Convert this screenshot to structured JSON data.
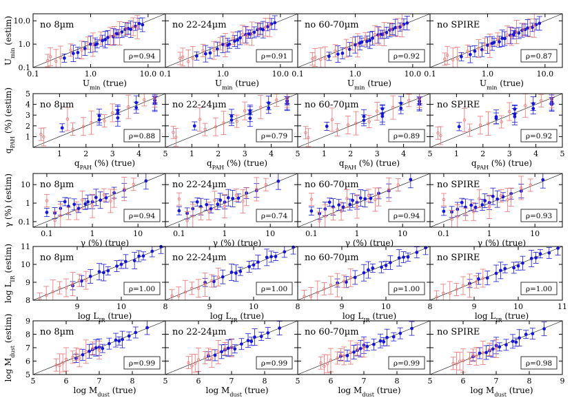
{
  "colors": {
    "blue": "#1515d6",
    "red": "#ee6f6f",
    "diagonal": "#000000"
  },
  "chart_data": {
    "type": "scatter",
    "rows": [
      {
        "key": "umin",
        "scale": "log",
        "xlim": [
          0.1,
          20
        ],
        "ylim": [
          0.1,
          20
        ],
        "xticks": [
          {
            "v": 0.1,
            "label": "0.1"
          },
          {
            "v": 1,
            "label": "1.0"
          },
          {
            "v": 10,
            "label": "10.0"
          }
        ],
        "yticks": [
          {
            "v": 0.1,
            "label": "0.1"
          },
          {
            "v": 1,
            "label": "1.0"
          },
          {
            "v": 10,
            "label": "10.0"
          }
        ],
        "ylabel": {
          "main": "U",
          "sub": "min",
          "tail": " (estim)"
        },
        "xlabel": {
          "main": "U",
          "sub": "min",
          "tail": " (true)"
        },
        "rho": [
          "ρ=0.94",
          "ρ=0.91",
          "ρ=0.92",
          "ρ=0.87"
        ],
        "series": [
          {
            "name": "blue",
            "color": "blue",
            "points": [
              [
                0.35,
                0.28
              ],
              [
                0.6,
                0.45
              ],
              [
                0.8,
                0.62
              ],
              [
                1.0,
                0.9
              ],
              [
                1.3,
                1.1
              ],
              [
                1.6,
                1.4
              ],
              [
                2.0,
                1.8
              ],
              [
                2.5,
                2.3
              ],
              [
                3.0,
                2.9
              ],
              [
                3.5,
                3.2
              ],
              [
                4.0,
                3.9
              ],
              [
                5.0,
                4.6
              ],
              [
                6.0,
                5.8
              ],
              [
                7.0,
                7.1
              ],
              [
                8.0,
                7.5
              ],
              [
                1.8,
                1.6
              ],
              [
                2.8,
                2.7
              ],
              [
                4.5,
                4.2
              ],
              [
                1.2,
                1.0
              ],
              [
                0.5,
                0.4
              ]
            ]
          },
          {
            "name": "red",
            "color": "red",
            "points": [
              [
                0.18,
                0.22
              ],
              [
                0.2,
                0.3
              ],
              [
                0.3,
                0.25
              ],
              [
                0.45,
                0.5
              ],
              [
                0.7,
                0.6
              ],
              [
                1.1,
                0.95
              ],
              [
                1.5,
                1.7
              ],
              [
                2.2,
                2.4
              ],
              [
                3.2,
                3.0
              ],
              [
                4.2,
                4.5
              ],
              [
                5.5,
                5.0
              ],
              [
                0.25,
                0.2
              ],
              [
                0.9,
                1.1
              ],
              [
                2.6,
                2.2
              ],
              [
                6.5,
                6.0
              ]
            ]
          }
        ]
      },
      {
        "key": "qpah",
        "scale": "linear",
        "xlim": [
          0,
          5
        ],
        "ylim": [
          0,
          5
        ],
        "xticks": [
          {
            "v": 1,
            "label": "1"
          },
          {
            "v": 2,
            "label": "2"
          },
          {
            "v": 3,
            "label": "3"
          },
          {
            "v": 4,
            "label": "4"
          },
          {
            "v": 5,
            "label": "5"
          }
        ],
        "yticks": [
          {
            "v": 1,
            "label": "1"
          },
          {
            "v": 2,
            "label": "2"
          },
          {
            "v": 3,
            "label": "3"
          },
          {
            "v": 4,
            "label": "4"
          },
          {
            "v": 5,
            "label": "5"
          }
        ],
        "ylabel": {
          "main": "q",
          "sub": "PAH",
          "tail": " (%) (estim)"
        },
        "xlabel": {
          "main": "q",
          "sub": "PAH",
          "tail": " (%) (true)"
        },
        "rho": [
          "ρ=0.88",
          "ρ=0.79",
          "ρ=0.89",
          "ρ=0.92"
        ],
        "series": [
          {
            "name": "blue",
            "color": "blue",
            "points": [
              [
                1.1,
                1.9
              ],
              [
                2.5,
                2.6
              ],
              [
                2.5,
                2.9
              ],
              [
                3.2,
                3.1
              ],
              [
                3.2,
                3.5
              ],
              [
                3.9,
                3.7
              ],
              [
                3.9,
                4.1
              ],
              [
                4.6,
                4.2
              ],
              [
                4.6,
                4.4
              ],
              [
                4.6,
                4.6
              ],
              [
                4.6,
                4.0
              ],
              [
                3.2,
                2.8
              ]
            ]
          },
          {
            "name": "red",
            "color": "red",
            "points": [
              [
                0.3,
                1.3
              ],
              [
                0.4,
                1.0
              ],
              [
                1.3,
                2.6
              ],
              [
                1.5,
                1.6
              ],
              [
                1.9,
                2.0
              ],
              [
                2.2,
                2.3
              ],
              [
                2.7,
                2.4
              ],
              [
                3.0,
                3.3
              ],
              [
                3.6,
                3.8
              ],
              [
                4.2,
                4.4
              ],
              [
                4.6,
                4.5
              ]
            ]
          }
        ]
      },
      {
        "key": "gamma",
        "scale": "log",
        "xlim": [
          0.05,
          40
        ],
        "ylim": [
          0.05,
          40
        ],
        "xticks": [
          {
            "v": 0.1,
            "label": "0.1"
          },
          {
            "v": 1,
            "label": "1"
          },
          {
            "v": 10,
            "label": "10"
          }
        ],
        "yticks": [
          {
            "v": 0.1,
            "label": "0.1"
          },
          {
            "v": 1,
            "label": "1"
          },
          {
            "v": 10,
            "label": "10"
          }
        ],
        "ylabel": {
          "main": "γ",
          "sub": "",
          "tail": " (%) (estim)"
        },
        "xlabel": {
          "main": "γ",
          "sub": "",
          "tail": " (%) (true)"
        },
        "rho": [
          "ρ=0.94",
          "ρ=0.74",
          "ρ=0.94",
          "ρ=0.93"
        ],
        "series": [
          {
            "name": "blue",
            "color": "blue",
            "points": [
              [
                0.1,
                0.35
              ],
              [
                0.15,
                0.3
              ],
              [
                0.2,
                0.5
              ],
              [
                0.3,
                0.6
              ],
              [
                0.5,
                0.55
              ],
              [
                0.7,
                0.9
              ],
              [
                1.0,
                1.1
              ],
              [
                1.5,
                1.6
              ],
              [
                2.0,
                2.0
              ],
              [
                3.0,
                3.5
              ],
              [
                5.0,
                4.5
              ],
              [
                15,
                17
              ],
              [
                0.25,
                1.2
              ],
              [
                0.4,
                0.8
              ],
              [
                0.8,
                1.3
              ],
              [
                1.2,
                2.1
              ]
            ]
          },
          {
            "name": "red",
            "color": "red",
            "points": [
              [
                0.1,
                1.5
              ],
              [
                0.15,
                0.12
              ],
              [
                0.2,
                0.2
              ],
              [
                0.3,
                0.25
              ],
              [
                0.6,
                1.6
              ],
              [
                1.0,
                0.7
              ],
              [
                1.8,
                2.6
              ],
              [
                3.0,
                2.0
              ],
              [
                5.0,
                6.0
              ],
              [
                8.0,
                10.0
              ],
              [
                0.45,
                0.35
              ],
              [
                2.5,
                1.4
              ]
            ]
          }
        ]
      },
      {
        "key": "lir",
        "scale": "linear",
        "xlim": [
          8,
          11
        ],
        "ylim": [
          8,
          11
        ],
        "xticks": [
          {
            "v": 9,
            "label": "9"
          },
          {
            "v": 10,
            "label": "10"
          }
        ],
        "xedge": [
          {
            "v": 8,
            "label": "8",
            "cols": [
              1,
              2,
              3
            ]
          },
          {
            "v": 11,
            "label": "11",
            "cols": [
              3
            ]
          }
        ],
        "yticks": [
          {
            "v": 8,
            "label": "8"
          },
          {
            "v": 9,
            "label": "9"
          },
          {
            "v": 10,
            "label": "10"
          },
          {
            "v": 11,
            "label": "11"
          }
        ],
        "ylabel": {
          "main": "log L",
          "sub": "IR",
          "tail": " (estim)"
        },
        "xlabel": {
          "main": "log L",
          "sub": "IR",
          "tail": " (true)"
        },
        "rho": [
          "ρ=1.00",
          "ρ=1.00",
          "ρ=1.00",
          "ρ=1.00"
        ],
        "series": [
          {
            "name": "blue",
            "color": "blue",
            "points": [
              [
                8.9,
                8.9
              ],
              [
                9.1,
                9.1
              ],
              [
                9.3,
                9.3
              ],
              [
                9.5,
                9.5
              ],
              [
                9.7,
                9.7
              ],
              [
                9.9,
                9.9
              ],
              [
                10.1,
                10.1
              ],
              [
                10.3,
                10.3
              ],
              [
                10.5,
                10.5
              ],
              [
                10.7,
                10.7
              ],
              [
                10.9,
                10.9
              ],
              [
                9.6,
                9.6
              ],
              [
                10.0,
                10.0
              ],
              [
                10.4,
                10.4
              ]
            ]
          },
          {
            "name": "red",
            "color": "red",
            "points": [
              [
                8.15,
                8.15
              ],
              [
                8.3,
                8.3
              ],
              [
                8.45,
                8.45
              ],
              [
                8.6,
                8.6
              ],
              [
                8.75,
                8.75
              ],
              [
                8.9,
                8.9
              ],
              [
                9.05,
                9.05
              ],
              [
                9.2,
                9.2
              ]
            ]
          }
        ]
      },
      {
        "key": "mdust",
        "scale": "linear",
        "xlim": [
          5,
          9
        ],
        "ylim": [
          5,
          9
        ],
        "xticks": [
          {
            "v": 6,
            "label": "6"
          },
          {
            "v": 7,
            "label": "7"
          },
          {
            "v": 8,
            "label": "8"
          }
        ],
        "xedge": [
          {
            "v": 5,
            "label": "5",
            "cols": [
              0,
              1,
              2,
              3
            ]
          },
          {
            "v": 9,
            "label": "9",
            "cols": [
              3
            ]
          }
        ],
        "yticks": [
          {
            "v": 5,
            "label": "5"
          },
          {
            "v": 6,
            "label": "6"
          },
          {
            "v": 7,
            "label": "7"
          },
          {
            "v": 8,
            "label": "8"
          },
          {
            "v": 9,
            "label": "9"
          }
        ],
        "ylabel": {
          "main": "log M",
          "sub": "dust",
          "tail": " (estim)"
        },
        "xlabel": {
          "main": "log M",
          "sub": "dust",
          "tail": " (true)"
        },
        "rho": [
          "ρ=0.99",
          "ρ=0.99",
          "ρ=0.99",
          "ρ=0.98"
        ],
        "series": [
          {
            "name": "blue",
            "color": "blue",
            "points": [
              [
                6.3,
                6.3
              ],
              [
                6.5,
                6.5
              ],
              [
                6.7,
                6.7
              ],
              [
                6.9,
                6.9
              ],
              [
                7.1,
                7.0
              ],
              [
                7.3,
                7.3
              ],
              [
                7.5,
                7.5
              ],
              [
                7.7,
                7.7
              ],
              [
                7.9,
                7.9
              ],
              [
                8.1,
                8.1
              ],
              [
                8.45,
                8.4
              ],
              [
                7.0,
                7.1
              ],
              [
                7.6,
                7.5
              ],
              [
                6.8,
                6.8
              ]
            ]
          },
          {
            "name": "red",
            "color": "red",
            "points": [
              [
                5.7,
                5.8
              ],
              [
                5.9,
                5.9
              ],
              [
                6.0,
                6.1
              ],
              [
                6.2,
                6.2
              ],
              [
                6.4,
                6.3
              ],
              [
                6.6,
                6.7
              ],
              [
                6.8,
                6.9
              ],
              [
                7.0,
                6.9
              ],
              [
                5.8,
                5.7
              ],
              [
                6.3,
                6.5
              ]
            ]
          }
        ]
      }
    ],
    "columns": [
      "no 8µm",
      "no 22-24µm",
      "no 60-70µm",
      "no SPIRE"
    ]
  }
}
